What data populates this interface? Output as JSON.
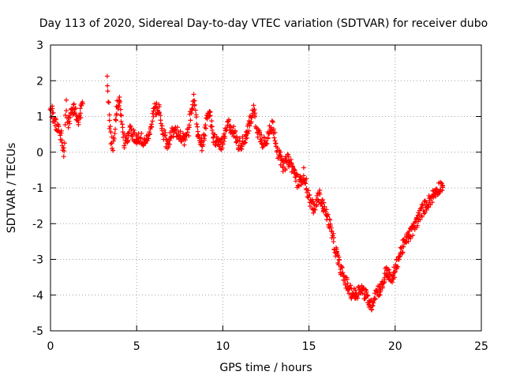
{
  "chart_data": {
    "type": "scatter",
    "title": "Day 113 of 2020, Sidereal Day-to-day VTEC variation (SDTVAR) for receiver dubo",
    "xlabel": "GPS time / hours",
    "ylabel": "SDTVAR / TECUs",
    "xlim": [
      0,
      25
    ],
    "ylim": [
      -5,
      3
    ],
    "xticks": [
      0,
      5,
      10,
      15,
      20,
      25
    ],
    "yticks": [
      -5,
      -4,
      -3,
      -2,
      -1,
      0,
      1,
      2,
      3
    ],
    "grid": true,
    "marker": "+",
    "color": "#ff0000",
    "series": [
      {
        "name": "SDTVAR",
        "trend": [
          [
            0.0,
            1.2
          ],
          [
            0.1,
            1.1
          ],
          [
            0.2,
            0.9
          ],
          [
            0.3,
            0.8
          ],
          [
            0.6,
            0.5
          ],
          [
            0.7,
            0.2
          ],
          [
            0.8,
            0.0
          ],
          [
            0.9,
            1.3
          ],
          [
            1.0,
            0.8
          ],
          [
            1.2,
            1.1
          ],
          [
            1.4,
            1.3
          ],
          [
            1.6,
            0.9
          ],
          [
            1.8,
            1.2
          ],
          [
            1.9,
            1.5
          ],
          [
            3.3,
            2.2
          ],
          [
            3.4,
            1.0
          ],
          [
            3.5,
            0.5
          ],
          [
            3.6,
            0.0
          ],
          [
            3.8,
            1.2
          ],
          [
            4.0,
            1.5
          ],
          [
            4.3,
            0.2
          ],
          [
            4.6,
            0.6
          ],
          [
            4.9,
            0.4
          ],
          [
            5.2,
            0.4
          ],
          [
            5.5,
            0.3
          ],
          [
            5.8,
            0.6
          ],
          [
            6.0,
            1.2
          ],
          [
            6.3,
            1.2
          ],
          [
            6.5,
            0.6
          ],
          [
            6.8,
            0.2
          ],
          [
            7.0,
            0.5
          ],
          [
            7.3,
            0.6
          ],
          [
            7.6,
            0.4
          ],
          [
            7.8,
            0.3
          ],
          [
            8.0,
            0.6
          ],
          [
            8.3,
            1.6
          ],
          [
            8.5,
            0.6
          ],
          [
            8.8,
            0.2
          ],
          [
            9.2,
            1.2
          ],
          [
            9.4,
            0.5
          ],
          [
            9.6,
            0.3
          ],
          [
            10.0,
            0.2
          ],
          [
            10.3,
            0.8
          ],
          [
            10.6,
            0.6
          ],
          [
            10.9,
            0.2
          ],
          [
            11.2,
            0.3
          ],
          [
            11.5,
            0.7
          ],
          [
            11.8,
            1.2
          ],
          [
            12.0,
            0.6
          ],
          [
            12.3,
            0.3
          ],
          [
            12.6,
            0.4
          ],
          [
            12.9,
            0.8
          ],
          [
            13.2,
            0.0
          ],
          [
            13.5,
            -0.4
          ],
          [
            13.8,
            -0.2
          ],
          [
            14.1,
            -0.5
          ],
          [
            14.4,
            -0.9
          ],
          [
            14.7,
            -0.6
          ],
          [
            15.0,
            -1.3
          ],
          [
            15.3,
            -1.6
          ],
          [
            15.6,
            -1.2
          ],
          [
            15.9,
            -1.6
          ],
          [
            16.2,
            -2.0
          ],
          [
            16.5,
            -2.7
          ],
          [
            16.8,
            -3.2
          ],
          [
            17.1,
            -3.6
          ],
          [
            17.4,
            -3.9
          ],
          [
            17.7,
            -4.0
          ],
          [
            18.0,
            -3.8
          ],
          [
            18.3,
            -4.0
          ],
          [
            18.6,
            -4.3
          ],
          [
            18.9,
            -3.9
          ],
          [
            19.2,
            -3.8
          ],
          [
            19.5,
            -3.3
          ],
          [
            19.8,
            -3.6
          ],
          [
            20.1,
            -3.1
          ],
          [
            20.4,
            -2.7
          ],
          [
            20.7,
            -2.4
          ],
          [
            21.0,
            -2.2
          ],
          [
            21.3,
            -1.9
          ],
          [
            21.6,
            -1.6
          ],
          [
            21.9,
            -1.4
          ],
          [
            22.2,
            -1.2
          ],
          [
            22.5,
            -1.0
          ],
          [
            22.8,
            -0.9
          ]
        ]
      }
    ]
  }
}
